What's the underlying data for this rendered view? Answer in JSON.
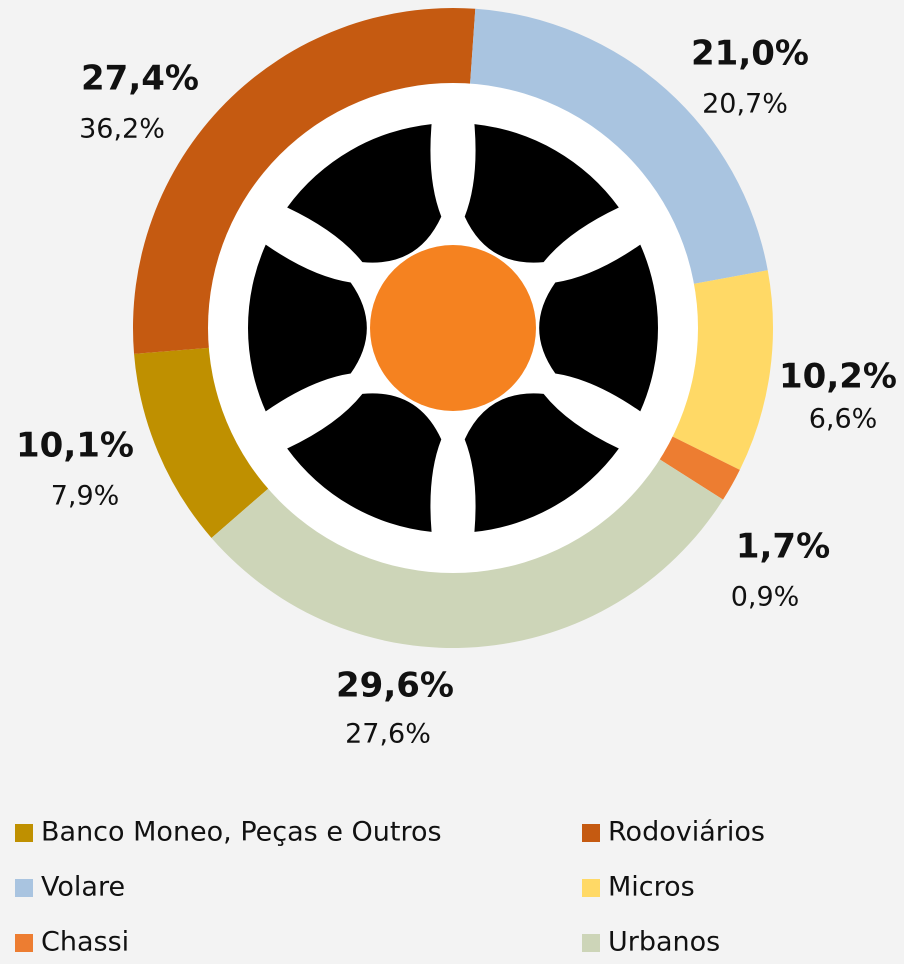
{
  "chart_data": {
    "type": "donut",
    "categories": [
      "Banco Moneo, Peças e Outros",
      "Rodoviários",
      "Volare",
      "Micros",
      "Chassi",
      "Urbanos"
    ],
    "colors": [
      "#bf9000",
      "#c55a11",
      "#a9c4e0",
      "#ffd966",
      "#ed7d31",
      "#cdd5b8"
    ],
    "series": [
      {
        "values": [
          10.1,
          27.4,
          21.0,
          10.2,
          1.7,
          29.6
        ],
        "value_labels": [
          "10,1%",
          "27,4%",
          "21,0%",
          "10,2%",
          "1,7%",
          "29,6%"
        ]
      },
      {
        "values": [
          7.9,
          36.2,
          20.7,
          6.6,
          0.9,
          27.6
        ],
        "value_labels": [
          "7,9%",
          "36,2%",
          "20,7%",
          "6,6%",
          "0,9%",
          "27,6%"
        ]
      }
    ]
  }
}
